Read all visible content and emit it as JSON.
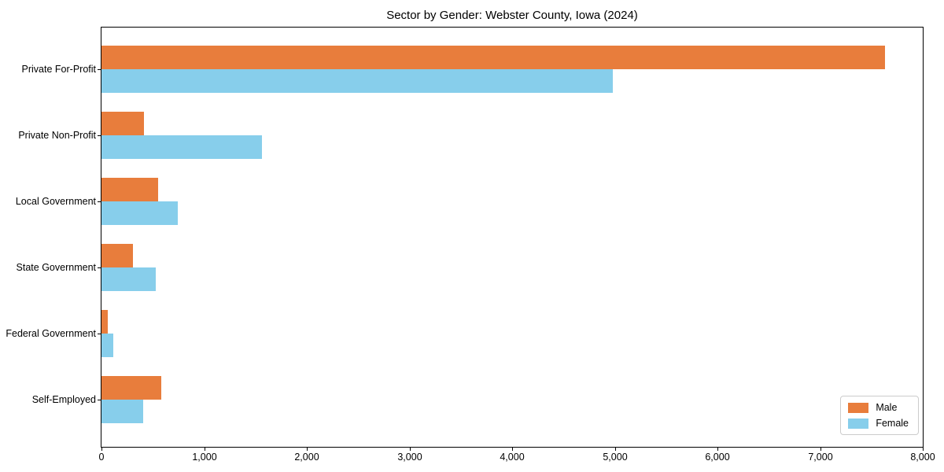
{
  "chart_data": {
    "type": "bar",
    "orientation": "horizontal",
    "title": "Sector by Gender: Webster County, Iowa (2024)",
    "categories": [
      "Private For-Profit",
      "Private Non-Profit",
      "Local Government",
      "State Government",
      "Federal Government",
      "Self-Employed"
    ],
    "series": [
      {
        "name": "Male",
        "color": "#e87d3c",
        "values": [
          7630,
          410,
          555,
          310,
          65,
          580
        ]
      },
      {
        "name": "Female",
        "color": "#87ceeb",
        "values": [
          4980,
          1565,
          745,
          525,
          115,
          405
        ]
      }
    ],
    "xlabel": "",
    "ylabel": "",
    "xlim": [
      0,
      8000
    ],
    "x_ticks": [
      0,
      1000,
      2000,
      3000,
      4000,
      5000,
      6000,
      7000,
      8000
    ],
    "x_tick_labels": [
      "0",
      "1,000",
      "2,000",
      "3,000",
      "4,000",
      "5,000",
      "6,000",
      "7,000",
      "8,000"
    ],
    "legend": {
      "position": "lower right"
    },
    "grid": false
  },
  "colors": {
    "axis": "#000000",
    "legend_border": "#cccccc",
    "background": "#ffffff"
  }
}
